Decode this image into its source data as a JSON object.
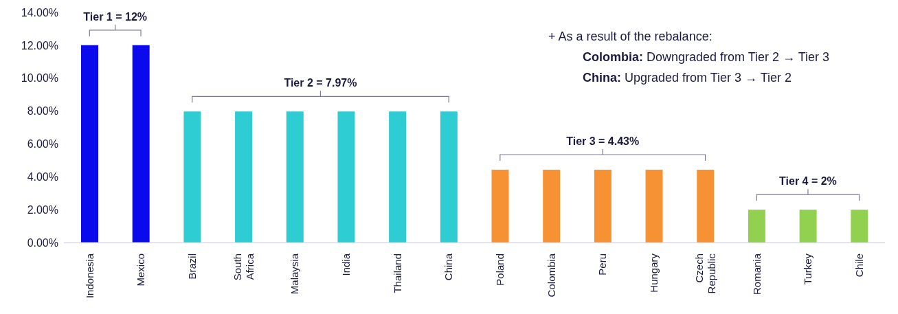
{
  "chart_data": {
    "type": "bar",
    "categories": [
      "Indonesia",
      "Mexico",
      "Brazil",
      "South Africa",
      "Malaysia",
      "India",
      "Thailand",
      "China",
      "Poland",
      "Colombia",
      "Peru",
      "Hungary",
      "Czech Republic",
      "Romania",
      "Turkey",
      "Chile"
    ],
    "values": [
      12,
      12,
      7.97,
      7.97,
      7.97,
      7.97,
      7.97,
      7.97,
      4.43,
      4.43,
      4.43,
      4.43,
      4.43,
      2,
      2,
      2
    ],
    "colors": [
      "#0a0aec",
      "#0a0aec",
      "#2ecdd4",
      "#2ecdd4",
      "#2ecdd4",
      "#2ecdd4",
      "#2ecdd4",
      "#2ecdd4",
      "#f79234",
      "#f79234",
      "#f79234",
      "#f79234",
      "#f79234",
      "#92d050",
      "#92d050",
      "#92d050"
    ],
    "ylim": [
      0,
      14
    ],
    "yticks": [
      {
        "value": 0,
        "label": "0.00%"
      },
      {
        "value": 2,
        "label": "2.00%"
      },
      {
        "value": 4,
        "label": "4.00%"
      },
      {
        "value": 6,
        "label": "6.00%"
      },
      {
        "value": 8,
        "label": "8.00%"
      },
      {
        "value": 10,
        "label": "10.00%"
      },
      {
        "value": 12,
        "label": "12.00%"
      },
      {
        "value": 14,
        "label": "14.00%"
      }
    ],
    "annotations": [
      "Tier 1 = 12%",
      "Tier 2 = 7.97%",
      "Tier 3 = 4.43%",
      "Tier 4 = 2%",
      "+ As a result of the rebalance:",
      "Colombia: Downgraded from Tier 2 → Tier 3",
      "China: Upgraded from Tier 3 → Tier 2"
    ],
    "grid": false,
    "legend": false
  }
}
